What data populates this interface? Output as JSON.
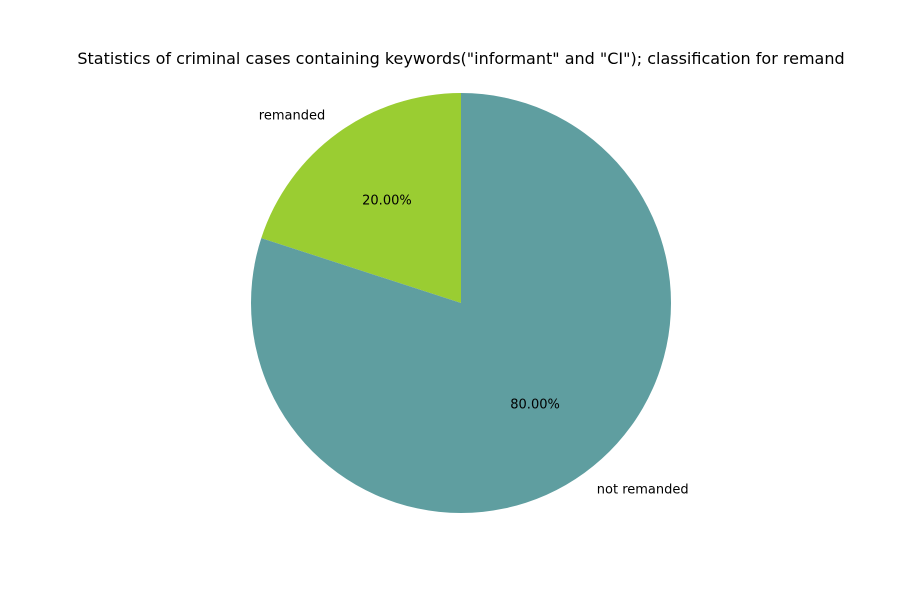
{
  "chart_data": {
    "type": "pie",
    "title": "Statistics of criminal cases containing keywords(\"informant\" and \"CI\"); classification for remand",
    "categories": [
      "remanded",
      "not remanded"
    ],
    "values": [
      20.0,
      80.0
    ],
    "percent_labels": [
      "20.00%",
      "80.00%"
    ],
    "colors": [
      "#9ACD32",
      "#5F9EA0"
    ],
    "start_angle_deg": 90,
    "direction": "counterclockwise",
    "legend": "none"
  }
}
